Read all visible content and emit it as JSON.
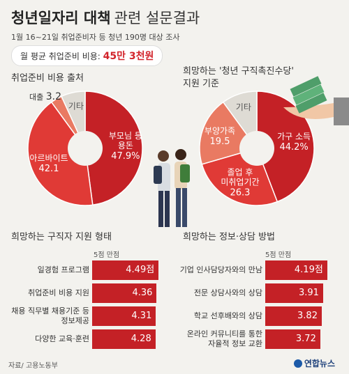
{
  "header": {
    "title_main": "청년일자리 대책",
    "title_sub": "관련 설문결과",
    "survey_note": "1월 16~21일 취업준비자 등 청년 190명 대상 조사",
    "cost_label": "월 평균 취업준비 비용: ",
    "cost_value": "45만 3천원"
  },
  "sections": {
    "cost_source": "취업준비 비용 출처",
    "allowance_title_1": "희망하는 '청년 구직촉진수당'",
    "allowance_title_2": "지원 기준",
    "job_support": "희망하는 구직자 지원 형태",
    "info_method": "희망하는 정보·상담 방법",
    "unit_note_left": "5점 만점",
    "unit_note_right": "5점 만점"
  },
  "colors": {
    "red_dark": "#c42126",
    "red_main": "#e03a36",
    "red_light": "#e97a62",
    "gray_light": "#dedbd4",
    "background": "#f3f2ee"
  },
  "chart_data": [
    {
      "type": "pie",
      "title": "취업준비 비용 출처",
      "slices": [
        {
          "label": "부모님 등 용돈",
          "label_lines": [
            "부모님 등",
            "용돈"
          ],
          "value": 47.9,
          "value_text": "47.9%",
          "color": "#c42126"
        },
        {
          "label": "아르바이트",
          "label_lines": [
            "아르바이트"
          ],
          "value": 42.1,
          "value_text": "42.1",
          "color": "#e03a36"
        },
        {
          "label": "대출",
          "label_lines": [
            "대출"
          ],
          "value": 3.2,
          "value_text": "3.2",
          "color": "#e97a62"
        },
        {
          "label": "기타",
          "label_lines": [
            "기타"
          ],
          "value": 6.8,
          "value_text": "",
          "color": "#dedbd4"
        }
      ]
    },
    {
      "type": "pie",
      "title": "희망하는 '청년 구직촉진수당' 지원 기준",
      "slices": [
        {
          "label": "가구 소득",
          "label_lines": [
            "가구 소득"
          ],
          "value": 44.2,
          "value_text": "44.2%",
          "color": "#c42126"
        },
        {
          "label": "졸업 후 미취업기간",
          "label_lines": [
            "졸업 후",
            "미취업기간"
          ],
          "value": 26.3,
          "value_text": "26.3",
          "color": "#e03a36"
        },
        {
          "label": "부양가족",
          "label_lines": [
            "부양가족"
          ],
          "value": 19.5,
          "value_text": "19.5",
          "color": "#e97a62"
        },
        {
          "label": "기타",
          "label_lines": [
            "기타"
          ],
          "value": 10.0,
          "value_text": "",
          "color": "#dedbd4"
        }
      ]
    },
    {
      "type": "bar",
      "title": "희망하는 구직자 지원 형태",
      "unit": "5점 만점",
      "xlim": [
        0,
        5
      ],
      "categories": [
        "일경험 프로그램",
        "취업준비 비용 지원",
        "채용 직무별 채용기준 등 정보제공",
        "다양한 교육·훈련"
      ],
      "category_lines": [
        [
          "일경험 프로그램"
        ],
        [
          "취업준비 비용 지원"
        ],
        [
          "채용 직무별 채용기준 등",
          "정보제공"
        ],
        [
          "다양한 교육·훈련"
        ]
      ],
      "values": [
        4.49,
        4.36,
        4.31,
        4.28
      ],
      "value_texts": [
        "4.49점",
        "4.36",
        "4.31",
        "4.28"
      ]
    },
    {
      "type": "bar",
      "title": "희망하는 정보·상담 방법",
      "unit": "5점 만점",
      "xlim": [
        0,
        5
      ],
      "categories": [
        "기업 인사담당자와의 만남",
        "전문 상담사와의 상담",
        "학교 선후배와의 상담",
        "온라인 커뮤니티를 통한 자율적 정보 교환"
      ],
      "category_lines": [
        [
          "기업 인사담당자와의 만남"
        ],
        [
          "전문 상담사와의 상담"
        ],
        [
          "학교 선후배와의 상담"
        ],
        [
          "온라인 커뮤니티를 통한",
          "자율적 정보 교환"
        ]
      ],
      "values": [
        4.19,
        3.91,
        3.82,
        3.72
      ],
      "value_texts": [
        "4.19점",
        "3.91",
        "3.82",
        "3.72"
      ]
    }
  ],
  "footer": {
    "source": "자료/ 고용노동부",
    "logo_text": "연합뉴스"
  }
}
